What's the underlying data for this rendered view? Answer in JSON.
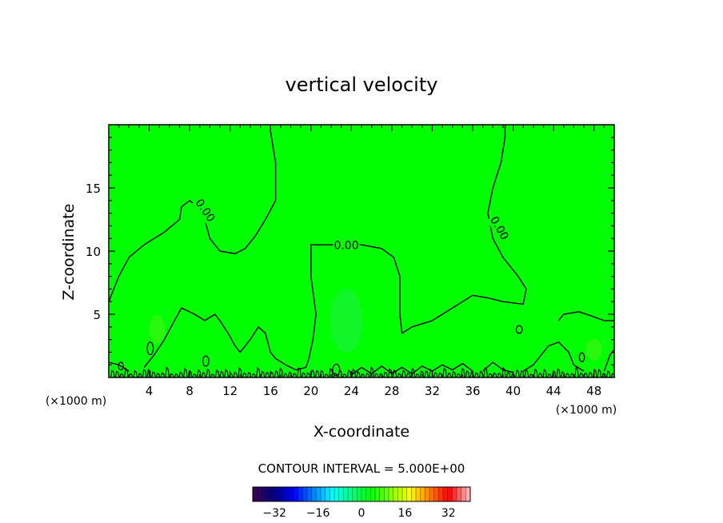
{
  "chart_data": {
    "type": "contour",
    "title": "vertical velocity",
    "xlabel": "X-coordinate",
    "ylabel": "Z-coordinate",
    "x_unit": "(×1000 m)",
    "y_unit": "(×1000 m)",
    "xlim": [
      0,
      50
    ],
    "ylim": [
      0,
      20
    ],
    "x_ticks": [
      4,
      8,
      12,
      16,
      20,
      24,
      28,
      32,
      36,
      40,
      44,
      48
    ],
    "y_ticks": [
      5,
      10,
      15
    ],
    "x_tick_labels": [
      "4",
      "8",
      "12",
      "16",
      "20",
      "24",
      "28",
      "32",
      "36",
      "40",
      "44",
      "48"
    ],
    "y_tick_labels": [
      "5",
      "10",
      "15"
    ],
    "contour_level_label": "0.00",
    "contour_interval_text": "CONTOUR INTERVAL = 5.000E+00",
    "colorbar": {
      "range": [
        -40,
        40
      ],
      "ticks": [
        -32,
        -16,
        0,
        16,
        32
      ],
      "tick_labels": [
        "−32",
        "−16",
        "0",
        "16",
        "32"
      ],
      "colors": [
        "#3a0055",
        "#000080",
        "#0000ff",
        "#0080ff",
        "#00ffff",
        "#00ff80",
        "#00ff00",
        "#80ff00",
        "#ffff00",
        "#ff8000",
        "#ff0000",
        "#ffb0b0"
      ]
    },
    "field_color": "#00ff00",
    "zero_contours": [
      [
        [
          0,
          6
        ],
        [
          1,
          8
        ],
        [
          2,
          9.5
        ],
        [
          3.5,
          10.5
        ],
        [
          5.5,
          11.5
        ],
        [
          7,
          12.5
        ],
        [
          7.2,
          13.5
        ],
        [
          8,
          14
        ],
        [
          8.8,
          13.5
        ],
        [
          9.5,
          12.5
        ],
        [
          10,
          11
        ],
        [
          11,
          10
        ],
        [
          12.5,
          9.8
        ],
        [
          13.5,
          10.2
        ],
        [
          14.5,
          11.2
        ],
        [
          15.5,
          12.5
        ],
        [
          16.5,
          14
        ],
        [
          16.5,
          17
        ],
        [
          16,
          19.5
        ],
        [
          16,
          20
        ]
      ],
      [
        [
          19.5,
          0.8
        ],
        [
          19.8,
          1.5
        ],
        [
          20.2,
          3
        ],
        [
          20.5,
          5
        ],
        [
          20,
          8
        ],
        [
          20,
          10.5
        ],
        [
          21,
          10.5
        ],
        [
          22.5,
          10.5
        ],
        [
          25,
          10.5
        ],
        [
          27,
          10.2
        ],
        [
          28.2,
          9.5
        ],
        [
          28.8,
          8
        ],
        [
          28.8,
          5
        ],
        [
          29,
          3.5
        ],
        [
          30,
          4
        ],
        [
          32,
          4.5
        ],
        [
          34,
          5.5
        ],
        [
          36,
          6.5
        ],
        [
          37.5,
          6.3
        ],
        [
          39,
          6
        ],
        [
          41,
          5.8
        ],
        [
          41.3,
          7
        ],
        [
          40.5,
          8
        ],
        [
          39,
          9.5
        ],
        [
          38,
          11
        ],
        [
          37.5,
          13
        ],
        [
          38,
          15
        ],
        [
          38.8,
          17
        ],
        [
          39.2,
          19
        ],
        [
          39.2,
          20
        ]
      ],
      [
        [
          44.5,
          4.5
        ],
        [
          45,
          5
        ],
        [
          46.5,
          5.2
        ],
        [
          48,
          4.8
        ],
        [
          49,
          4.5
        ],
        [
          50,
          4.5
        ]
      ],
      [
        [
          0,
          1.2
        ],
        [
          1,
          1.0
        ],
        [
          2,
          0.5
        ]
      ],
      [
        [
          3.5,
          0.8
        ],
        [
          4.5,
          1.8
        ],
        [
          5.5,
          3
        ],
        [
          6.5,
          4.5
        ],
        [
          7.2,
          5.5
        ],
        [
          8.5,
          5
        ],
        [
          9.5,
          4.5
        ],
        [
          10.5,
          5
        ],
        [
          11,
          4.5
        ],
        [
          11.8,
          3.5
        ],
        [
          12.5,
          2.5
        ],
        [
          13,
          2
        ],
        [
          14,
          3
        ],
        [
          14.8,
          4
        ],
        [
          15.5,
          3.5
        ],
        [
          16,
          2
        ],
        [
          16.5,
          1.5
        ],
        [
          17.5,
          1
        ],
        [
          18.5,
          0.6
        ],
        [
          19.5,
          0.8
        ]
      ],
      [
        [
          41,
          0.5
        ],
        [
          42,
          1
        ],
        [
          43.5,
          2.5
        ],
        [
          44.5,
          2.8
        ],
        [
          45.5,
          2
        ],
        [
          46,
          1
        ],
        [
          47,
          0.5
        ]
      ],
      [
        [
          37,
          0.5
        ],
        [
          38,
          1.2
        ],
        [
          39,
          0.6
        ],
        [
          40,
          0.4
        ]
      ],
      [
        [
          32,
          0.5
        ],
        [
          33,
          1.0
        ],
        [
          34,
          0.6
        ],
        [
          35,
          1.1
        ],
        [
          36,
          0.5
        ]
      ],
      [
        [
          24,
          0.2
        ],
        [
          25,
          0.8
        ],
        [
          26,
          0.3
        ],
        [
          27,
          0.9
        ],
        [
          28,
          0.3
        ],
        [
          29,
          0.8
        ],
        [
          30,
          0.3
        ],
        [
          31,
          0.9
        ],
        [
          32,
          0.5
        ]
      ],
      [
        [
          49,
          0.5
        ],
        [
          49.6,
          1.8
        ],
        [
          50,
          2.2
        ]
      ]
    ],
    "small_closed_contours": [
      {
        "cx": 4.1,
        "cy": 2.3,
        "rx": 0.3,
        "ry": 0.5
      },
      {
        "cx": 40.6,
        "cy": 3.8,
        "rx": 0.3,
        "ry": 0.3
      },
      {
        "cx": 46.8,
        "cy": 1.6,
        "rx": 0.25,
        "ry": 0.35
      },
      {
        "cx": 22.5,
        "cy": 0.6,
        "rx": 0.35,
        "ry": 0.45
      },
      {
        "cx": 1.2,
        "cy": 0.9,
        "rx": 0.25,
        "ry": 0.3
      },
      {
        "cx": 9.6,
        "cy": 1.3,
        "rx": 0.3,
        "ry": 0.4
      }
    ],
    "inline_labels": [
      {
        "x": 9.5,
        "y": 13.2,
        "angle": 55
      },
      {
        "x": 23.5,
        "y": 10.4,
        "angle": 0
      },
      {
        "x": 38.6,
        "y": 11.8,
        "angle": 60
      }
    ],
    "grid": false
  }
}
